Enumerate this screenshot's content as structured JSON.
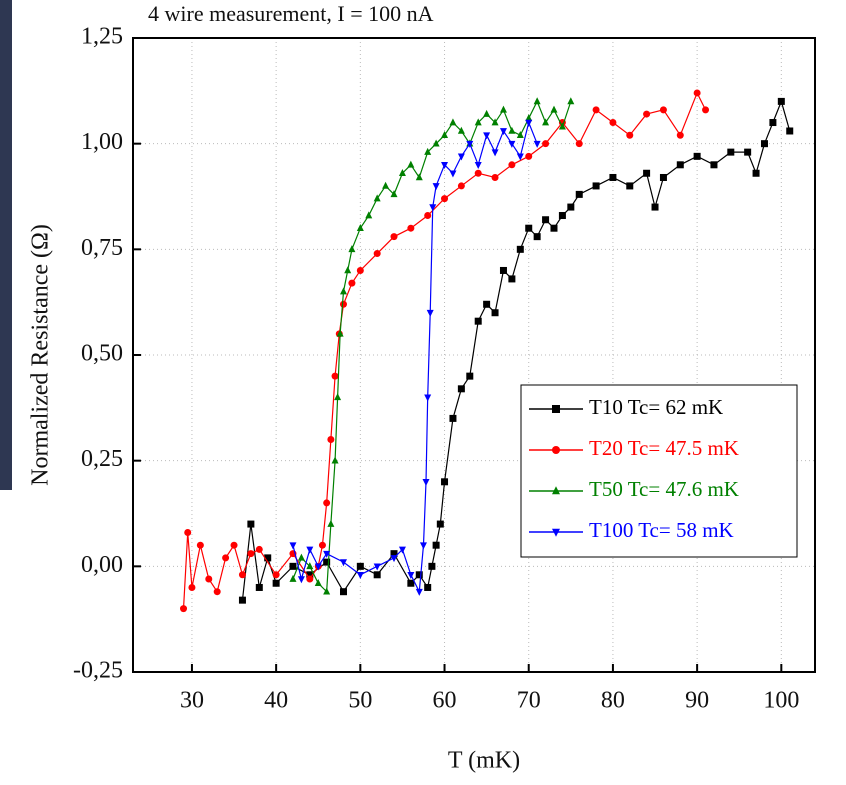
{
  "chart_data": {
    "type": "line",
    "title": "4 wire measurement, I = 100 nA",
    "x_label": "T (mK)",
    "y_label": "Normalized Resistance (Ω)",
    "xlim": [
      23,
      104
    ],
    "ylim": [
      -0.25,
      1.25
    ],
    "xticks": [
      30,
      40,
      50,
      60,
      70,
      80,
      90,
      100
    ],
    "yticks": [
      {
        "value": -0.25,
        "label": "-0,25"
      },
      {
        "value": 0,
        "label": "0,00"
      },
      {
        "value": 0.25,
        "label": "0,25"
      },
      {
        "value": 0.5,
        "label": "0,50"
      },
      {
        "value": 0.75,
        "label": "0,75"
      },
      {
        "value": 1,
        "label": "1,00"
      },
      {
        "value": 1.25,
        "label": "1,25"
      }
    ],
    "grid": true,
    "legend": "lower-right",
    "series": [
      {
        "name": "T10 Tc= 62 mK",
        "color": "#000000",
        "marker": "square",
        "x": [
          36,
          37,
          38,
          39,
          40,
          42,
          44,
          46,
          48,
          50,
          52,
          54,
          56,
          57,
          58,
          58.5,
          59,
          59.5,
          60,
          61,
          62,
          63,
          64,
          65,
          66,
          67,
          68,
          69,
          70,
          71,
          72,
          73,
          74,
          75,
          76,
          78,
          80,
          82,
          84,
          85,
          86,
          88,
          90,
          92,
          94,
          96,
          97,
          98,
          99,
          100,
          101
        ],
        "values": [
          -0.08,
          0.1,
          -0.05,
          0.02,
          -0.04,
          0.0,
          -0.02,
          0.01,
          -0.06,
          0.0,
          -0.02,
          0.03,
          -0.04,
          -0.02,
          -0.05,
          0.0,
          0.05,
          0.1,
          0.2,
          0.35,
          0.42,
          0.45,
          0.58,
          0.62,
          0.6,
          0.7,
          0.68,
          0.75,
          0.8,
          0.78,
          0.82,
          0.8,
          0.83,
          0.85,
          0.88,
          0.9,
          0.92,
          0.9,
          0.93,
          0.85,
          0.92,
          0.95,
          0.97,
          0.95,
          0.98,
          0.98,
          0.93,
          1.0,
          1.05,
          1.1,
          1.03
        ]
      },
      {
        "name": "T20 Tc= 47.5 mK",
        "color": "#ff0000",
        "marker": "circle",
        "x": [
          29,
          29.5,
          30,
          31,
          32,
          33,
          34,
          35,
          36,
          37,
          38,
          40,
          42,
          44,
          45,
          45.5,
          46,
          46.5,
          47,
          47.5,
          48,
          49,
          50,
          52,
          54,
          56,
          58,
          60,
          62,
          64,
          66,
          68,
          70,
          72,
          74,
          76,
          78,
          80,
          82,
          84,
          86,
          88,
          90,
          91
        ],
        "values": [
          -0.1,
          0.08,
          -0.05,
          0.05,
          -0.03,
          -0.06,
          0.02,
          0.05,
          -0.02,
          0.03,
          0.04,
          -0.02,
          0.03,
          -0.03,
          0.0,
          0.05,
          0.15,
          0.3,
          0.45,
          0.55,
          0.62,
          0.67,
          0.7,
          0.74,
          0.78,
          0.8,
          0.83,
          0.87,
          0.9,
          0.93,
          0.92,
          0.95,
          0.97,
          1.0,
          1.05,
          1.0,
          1.08,
          1.05,
          1.02,
          1.07,
          1.08,
          1.02,
          1.12,
          1.08
        ]
      },
      {
        "name": "T50 Tc= 47.6  mK",
        "color": "#008000",
        "marker": "triangle-up",
        "x": [
          42,
          43,
          44,
          45,
          46,
          46.5,
          47,
          47.3,
          47.6,
          48,
          48.5,
          49,
          50,
          51,
          52,
          53,
          54,
          55,
          56,
          57,
          58,
          59,
          60,
          61,
          62,
          63,
          64,
          65,
          66,
          67,
          68,
          69,
          70,
          71,
          72,
          73,
          74,
          75
        ],
        "values": [
          -0.03,
          0.02,
          0.0,
          -0.04,
          -0.06,
          0.1,
          0.25,
          0.4,
          0.55,
          0.65,
          0.7,
          0.75,
          0.8,
          0.83,
          0.87,
          0.9,
          0.88,
          0.93,
          0.95,
          0.92,
          0.98,
          1.0,
          1.02,
          1.05,
          1.03,
          1.0,
          1.05,
          1.07,
          1.05,
          1.08,
          1.03,
          1.02,
          1.06,
          1.1,
          1.05,
          1.08,
          1.04,
          1.1
        ]
      },
      {
        "name": "T100 Tc= 58 mK",
        "color": "#0000ff",
        "marker": "triangle-down",
        "x": [
          42,
          43,
          44,
          45,
          46,
          48,
          50,
          52,
          54,
          55,
          56,
          57,
          57.5,
          57.8,
          58,
          58.3,
          58.6,
          59,
          60,
          61,
          62,
          63,
          64,
          65,
          66,
          67,
          68,
          69,
          70,
          71
        ],
        "values": [
          0.05,
          -0.03,
          0.04,
          0.0,
          0.03,
          0.01,
          -0.02,
          0.0,
          0.02,
          0.04,
          -0.02,
          -0.06,
          0.05,
          0.2,
          0.4,
          0.6,
          0.85,
          0.9,
          0.95,
          0.93,
          0.97,
          1.0,
          0.95,
          1.02,
          0.98,
          1.03,
          1.0,
          0.97,
          1.05,
          1.0
        ]
      }
    ]
  }
}
